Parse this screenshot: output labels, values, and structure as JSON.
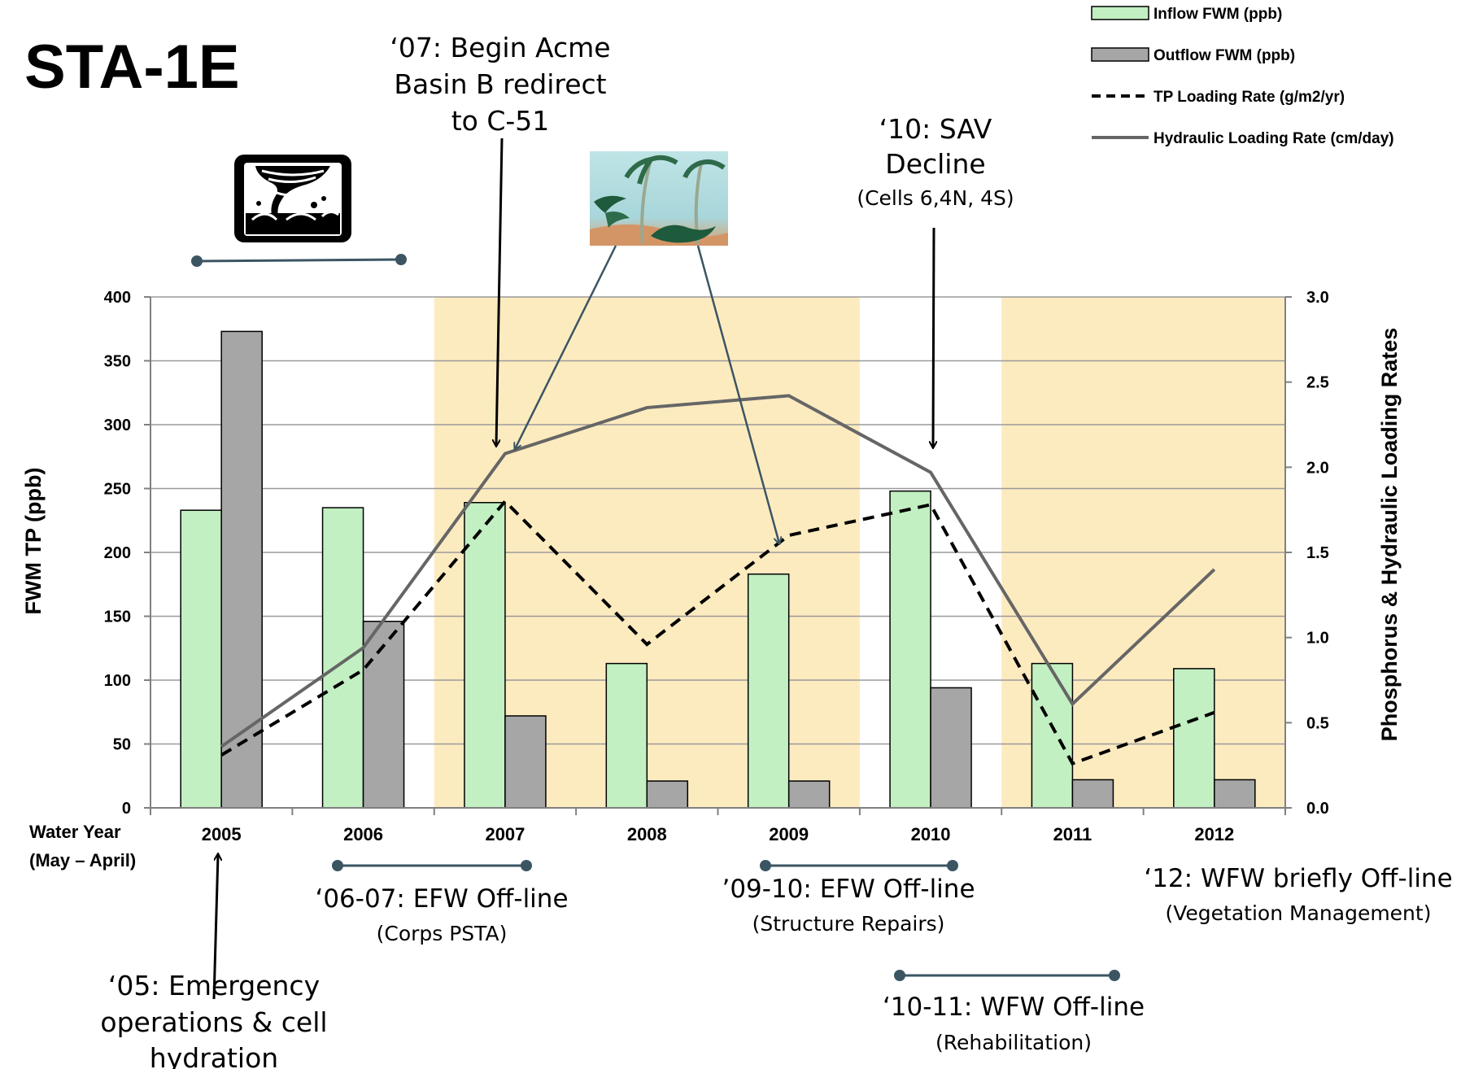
{
  "chart_data": {
    "type": "bar",
    "title": "STA-1E",
    "categories": [
      "2005",
      "2006",
      "2007",
      "2008",
      "2009",
      "2010",
      "2011",
      "2012"
    ],
    "xlabel": [
      "Water Year",
      "(May – April)"
    ],
    "ylabel": "FWM TP (ppb)",
    "y2label": "Phosphorus & Hydraulic Loading Rates",
    "ylim": [
      0,
      400
    ],
    "y2lim": [
      0,
      3.0
    ],
    "yticks": [
      "0",
      "50",
      "100",
      "150",
      "200",
      "250",
      "300",
      "350",
      "400"
    ],
    "y2ticks": [
      "0.0",
      "0.5",
      "1.0",
      "1.5",
      "2.0",
      "2.5",
      "3.0"
    ],
    "grid": true,
    "legend_position": "top-right",
    "series": [
      {
        "name": "Inflow FWM (ppb)",
        "kind": "bar",
        "axis": "left",
        "color": "#c2f0c2",
        "values": [
          233,
          235,
          239,
          113,
          183,
          248,
          113,
          109
        ]
      },
      {
        "name": "Outflow FWM (ppb)",
        "kind": "bar",
        "axis": "left",
        "color": "#a6a6a6",
        "values": [
          373,
          146,
          72,
          21,
          21,
          94,
          22,
          22
        ]
      },
      {
        "name": "TP Loading Rate (g/m2/yr)",
        "kind": "line",
        "style": "dashed",
        "axis": "right",
        "color": "#000000",
        "values": [
          0.31,
          0.81,
          1.8,
          0.96,
          1.6,
          1.78,
          0.26,
          0.56
        ]
      },
      {
        "name": "Hydraulic Loading Rate (cm/day)",
        "kind": "line",
        "style": "solid",
        "axis": "right",
        "color": "#666666",
        "values": [
          0.36,
          0.94,
          2.08,
          2.35,
          2.42,
          1.97,
          0.61,
          1.4
        ]
      }
    ],
    "shaded_periods": [
      {
        "from": "2007",
        "to": "2009",
        "color": "#fdebc0"
      },
      {
        "from": "2011",
        "to": "2012",
        "color": "#fdebc0"
      }
    ],
    "annotations": [
      {
        "id": "a05",
        "lines": [
          "‘05: Emergency",
          "operations & cell",
          "hydration"
        ]
      },
      {
        "id": "a07",
        "lines": [
          "‘07: Begin Acme",
          "Basin B redirect",
          "to C-51"
        ]
      },
      {
        "id": "a10",
        "lines": [
          "‘10: SAV",
          "Decline"
        ],
        "sub": "(Cells 6,4N, 4S)"
      },
      {
        "id": "a0607",
        "lines": [
          "‘06-07: EFW Off-line"
        ],
        "sub": "(Corps PSTA)"
      },
      {
        "id": "a0910",
        "lines": [
          "’09-10: EFW Off-line"
        ],
        "sub": "(Structure Repairs)"
      },
      {
        "id": "a1011",
        "lines": [
          "‘10-11: WFW Off-line"
        ],
        "sub": "(Rehabilitation)"
      },
      {
        "id": "a12",
        "lines": [
          "‘12: WFW briefly Off-line"
        ],
        "sub": "(Vegetation Management)"
      }
    ],
    "icons": [
      "tornado-icon",
      "hurricane-palm-trees-image"
    ]
  }
}
